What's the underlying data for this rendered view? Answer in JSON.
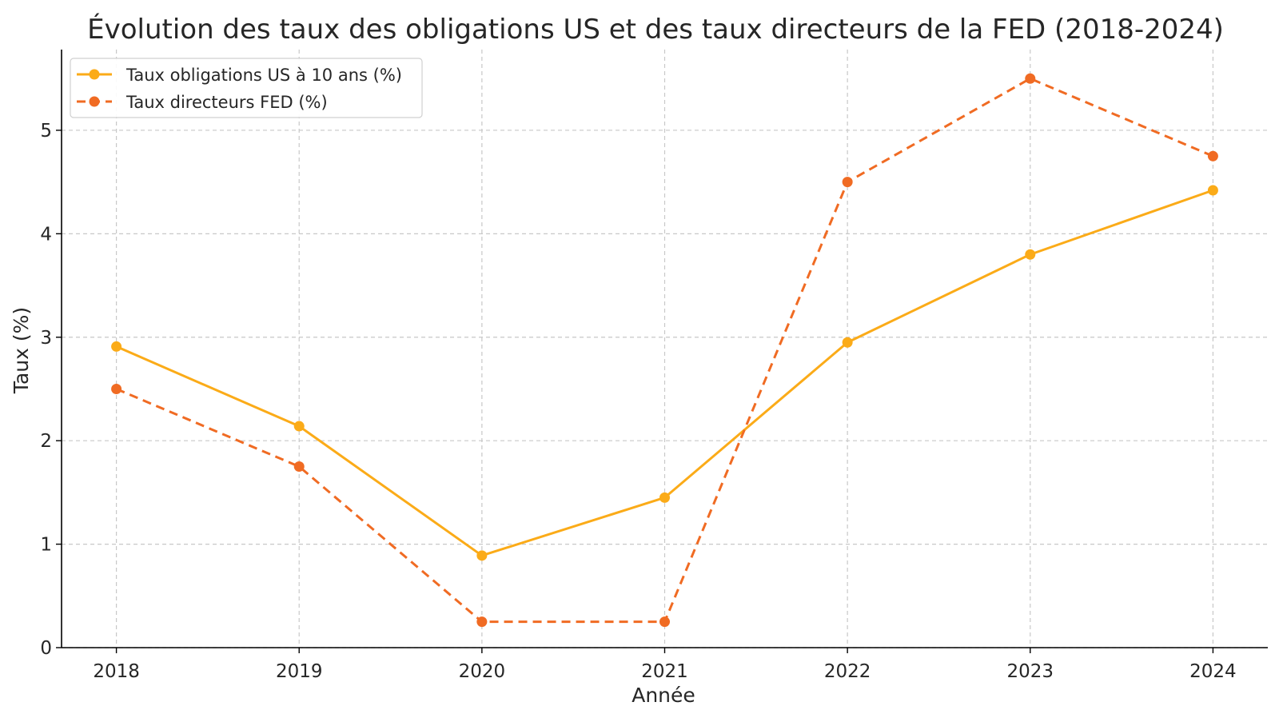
{
  "chart_data": {
    "type": "line",
    "title": "Évolution des taux des obligations US et des taux directeurs de la FED (2018-2024)",
    "xlabel": "Année",
    "ylabel": "Taux (%)",
    "x": [
      2018,
      2019,
      2020,
      2021,
      2022,
      2023,
      2024
    ],
    "x_tick_labels": [
      "2018",
      "2019",
      "2020",
      "2021",
      "2022",
      "2023",
      "2024"
    ],
    "y_ticks": [
      0,
      1,
      2,
      3,
      4,
      5
    ],
    "y_tick_labels": [
      "0",
      "1",
      "2",
      "3",
      "4",
      "5"
    ],
    "xlim": [
      2017.7,
      2024.3
    ],
    "ylim": [
      0,
      5.78
    ],
    "grid": true,
    "legend_position": "upper-left",
    "series": [
      {
        "name": "Taux obligations US à 10 ans (%)",
        "values": [
          2.91,
          2.14,
          0.89,
          1.45,
          2.95,
          3.8,
          4.42
        ],
        "color": "#fbab18",
        "line_style": "solid",
        "marker": "circle"
      },
      {
        "name": "Taux directeurs FED (%)",
        "values": [
          2.5,
          1.75,
          0.25,
          0.25,
          4.5,
          5.5,
          4.75
        ],
        "color": "#f06b23",
        "line_style": "dashed",
        "marker": "circle"
      }
    ]
  }
}
